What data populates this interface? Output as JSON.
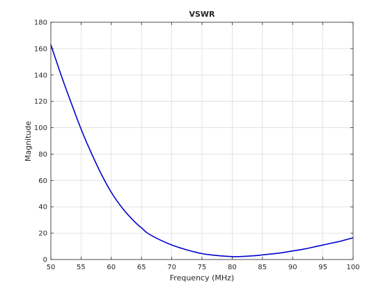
{
  "chart_data": {
    "type": "line",
    "title": "VSWR",
    "xlabel": "Frequency (MHz)",
    "ylabel": "Magnitude",
    "xlim": [
      50,
      100
    ],
    "ylim": [
      0,
      180
    ],
    "xticks": [
      50,
      55,
      60,
      65,
      70,
      75,
      80,
      85,
      90,
      95,
      100
    ],
    "yticks": [
      0,
      20,
      40,
      60,
      80,
      100,
      120,
      140,
      160,
      180
    ],
    "grid": true,
    "legend": "none",
    "series": [
      {
        "color": "#0000cc",
        "x": [
          50,
          52,
          54,
          55,
          56,
          58,
          60,
          62,
          64,
          65,
          66,
          68,
          70,
          72,
          74,
          75,
          76,
          78,
          80,
          81,
          82,
          84,
          85,
          86,
          88,
          90,
          92,
          94,
          95,
          96,
          98,
          100
        ],
        "y": [
          163,
          136,
          111,
          99,
          88,
          68,
          51,
          38,
          28,
          24,
          20,
          15,
          11,
          8,
          5.5,
          4.5,
          3.8,
          2.8,
          2.2,
          2.2,
          2.4,
          3,
          3.5,
          4,
          5,
          6.5,
          8,
          10,
          11,
          12,
          14,
          16.5
        ]
      }
    ]
  }
}
